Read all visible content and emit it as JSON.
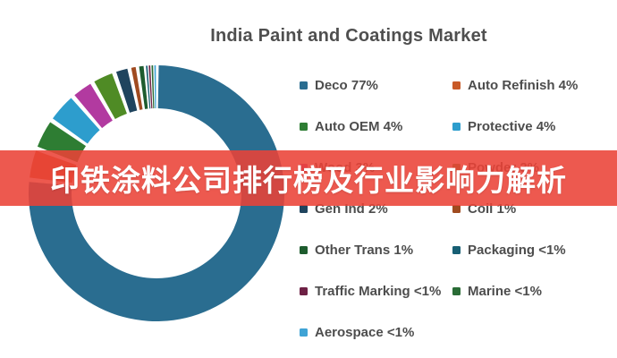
{
  "title": "India Paint and Coatings Market",
  "overlay": {
    "text": "印铁涂料公司排行榜及行业影响力解析",
    "background_color": "#eb4237",
    "background_rgba": "rgba(235,66,55,0.88)",
    "text_color": "#ffffff"
  },
  "chart_data": {
    "type": "pie",
    "subtype": "donut",
    "title": "India Paint and Coatings Market",
    "direction": "clockwise",
    "start_angle": "12 o'clock",
    "legend_position": "right, two columns",
    "series": [
      {
        "label": "Deco",
        "display": "Deco 77%",
        "pct": 77,
        "color": "#2a6d90"
      },
      {
        "label": "Auto Refinish",
        "display": "Auto Refinish 4%",
        "pct": 4,
        "color": "#c85a28"
      },
      {
        "label": "Auto OEM",
        "display": "Auto OEM 4%",
        "pct": 4,
        "color": "#2e7d33"
      },
      {
        "label": "Protective",
        "display": "Protective 4%",
        "pct": 4,
        "color": "#2d9dcd"
      },
      {
        "label": "Wood",
        "display": "Wood 3%",
        "pct": 3,
        "color": "#b23aa0"
      },
      {
        "label": "Powder",
        "display": "Powder 3%",
        "pct": 3,
        "color": "#4f8b25"
      },
      {
        "label": "Gen Ind",
        "display": "Gen Ind 2%",
        "pct": 2,
        "color": "#1f445e"
      },
      {
        "label": "Coil",
        "display": "Coil 1%",
        "pct": 1,
        "color": "#a04b20"
      },
      {
        "label": "Other Trans",
        "display": "Other Trans 1%",
        "pct": 1,
        "color": "#1e5c2e"
      },
      {
        "label": "Packaging",
        "display": "Packaging <1%",
        "pct": 0.35,
        "color": "#175f74"
      },
      {
        "label": "Traffic Marking",
        "display": "Traffic Marking <1%",
        "pct": 0.35,
        "color": "#6e2145"
      },
      {
        "label": "Marine",
        "display": "Marine <1%",
        "pct": 0.35,
        "color": "#2a6c36"
      },
      {
        "label": "Aerospace",
        "display": "Aerospace <1%",
        "pct": 0.35,
        "color": "#3fa3d5"
      }
    ],
    "legend_columns": [
      [
        0,
        2,
        4,
        6,
        8,
        10,
        12
      ],
      [
        1,
        3,
        5,
        7,
        9,
        11
      ]
    ],
    "geometry": {
      "outer_radius": 143,
      "inner_radius": 95,
      "slice_gap_color": "#ffffff"
    }
  }
}
